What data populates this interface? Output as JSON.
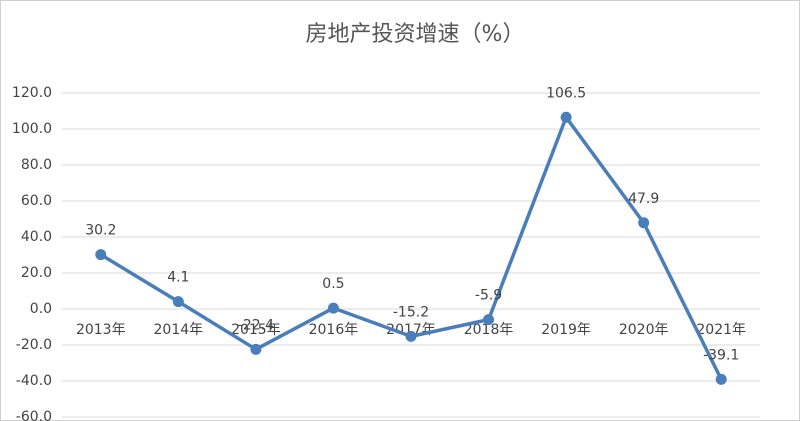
{
  "chart_data": {
    "type": "line",
    "title": "房地产投资增速（%）",
    "categories": [
      "2013年",
      "2014年",
      "2015年",
      "2016年",
      "2017年",
      "2018年",
      "2019年",
      "2020年",
      "2021年"
    ],
    "values": [
      30.2,
      4.1,
      -22.4,
      0.5,
      -15.2,
      -5.9,
      106.5,
      47.9,
      -39.1
    ],
    "color": "#4a7ebb",
    "ylim": [
      -60,
      120
    ],
    "yticks": [
      {
        "value": -60,
        "label": "-60.0"
      },
      {
        "value": -40,
        "label": "-40.0"
      },
      {
        "value": -20,
        "label": "-20.0"
      },
      {
        "value": 0,
        "label": "0.0"
      },
      {
        "value": 20,
        "label": "20.0"
      },
      {
        "value": 40,
        "label": "40.0"
      },
      {
        "value": 60,
        "label": "60.0"
      },
      {
        "value": 80,
        "label": "80.0"
      },
      {
        "value": 100,
        "label": "100.0"
      },
      {
        "value": 120,
        "label": "120.0"
      }
    ],
    "grid": true
  }
}
